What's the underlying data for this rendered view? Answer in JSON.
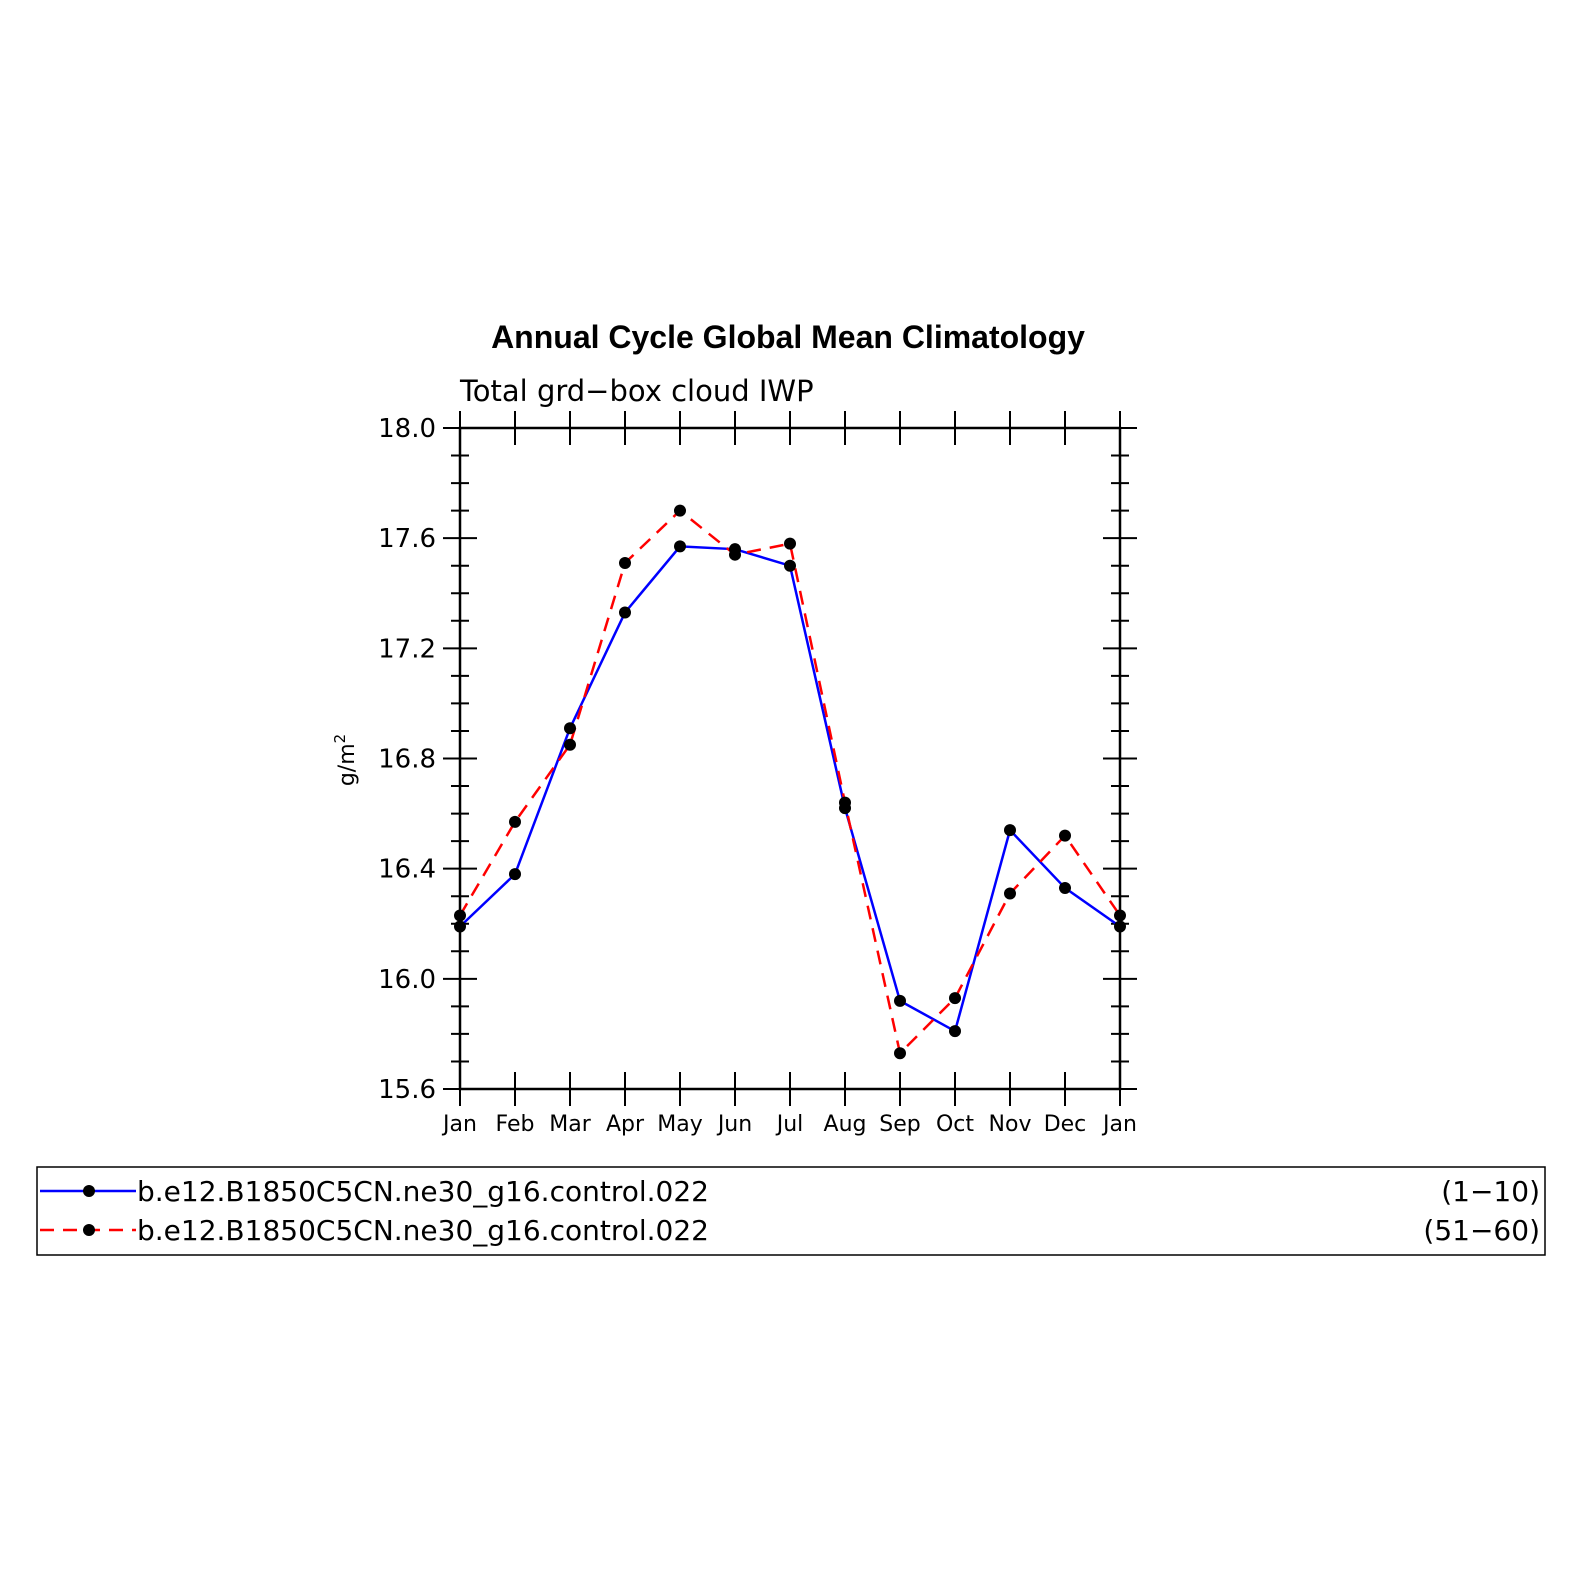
{
  "chart_data": {
    "type": "line",
    "title": "Annual Cycle Global Mean Climatology",
    "subtitle": "Total grd−box cloud IWP",
    "ylabel": "g/m",
    "ylabel_sup": "2",
    "ylim": [
      15.6,
      18.0
    ],
    "yticks": [
      "15.6",
      "16.0",
      "16.4",
      "16.8",
      "17.2",
      "17.6",
      "18.0"
    ],
    "categories": [
      "Jan",
      "Feb",
      "Mar",
      "Apr",
      "May",
      "Jun",
      "Jul",
      "Aug",
      "Sep",
      "Oct",
      "Nov",
      "Dec",
      "Jan"
    ],
    "series": [
      {
        "name": "b.e12.B1850C5CN.ne30_g16.control.022",
        "years": "(1−10)",
        "color": "#0000ff",
        "dash": "solid",
        "values": [
          16.19,
          16.38,
          16.91,
          17.33,
          17.57,
          17.56,
          17.5,
          16.62,
          15.92,
          15.81,
          16.54,
          16.33,
          16.19
        ]
      },
      {
        "name": "b.e12.B1850C5CN.ne30_g16.control.022",
        "years": "(51−60)",
        "color": "#ff0000",
        "dash": "dashed",
        "values": [
          16.23,
          16.57,
          16.85,
          17.51,
          17.7,
          17.54,
          17.58,
          16.64,
          15.73,
          15.93,
          16.31,
          16.52,
          16.23
        ]
      }
    ],
    "marker_color": "#000000",
    "grid": false,
    "legend_position": "bottom"
  }
}
